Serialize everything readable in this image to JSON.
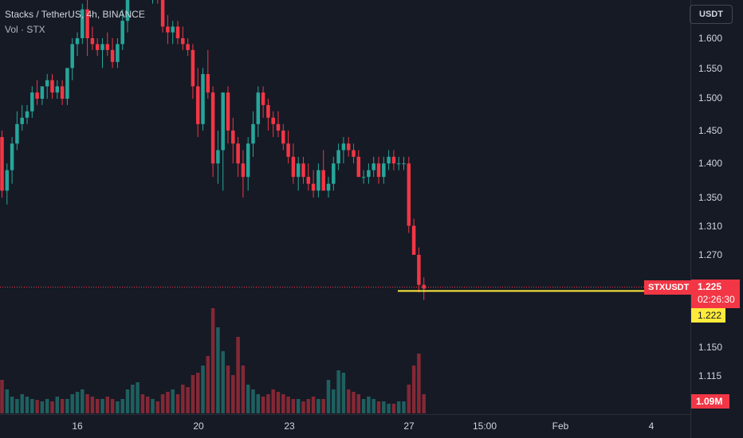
{
  "legend": {
    "title": "Stacks / TetherUS, 4h, BINANCE",
    "volume_label": "Vol · STX"
  },
  "currency_button": "USDT",
  "price_axis": {
    "labels": [
      "1.600",
      "1.550",
      "1.500",
      "1.450",
      "1.400",
      "1.350",
      "1.310",
      "1.270",
      "1.150",
      "1.115"
    ]
  },
  "time_axis": {
    "labels": [
      "16",
      "20",
      "23",
      "27",
      "15:00",
      "Feb",
      "4"
    ]
  },
  "markers": {
    "symbol": "STXUSDT",
    "last_price": "1.225",
    "countdown": "02:26:30",
    "horizontal_line_price": "1.222",
    "volume_value": "1.09M"
  },
  "colors": {
    "background": "#161a25",
    "up": "#26a69a",
    "down": "#f23645",
    "up_volume": "#26a69a80",
    "down_volume": "#f2364580",
    "horizontal_line": "#ffeb3b"
  },
  "chart_data": {
    "type": "candlestick",
    "title": "Stacks / TetherUS, 4h, BINANCE",
    "interval": "4h",
    "y_axis_scale": "log",
    "grid": false,
    "horizontal_line": 1.222,
    "last_price": 1.225,
    "ohlc": [
      [
        1.44,
        1.45,
        1.35,
        1.36
      ],
      [
        1.36,
        1.4,
        1.34,
        1.39
      ],
      [
        1.39,
        1.44,
        1.37,
        1.43
      ],
      [
        1.43,
        1.48,
        1.42,
        1.46
      ],
      [
        1.46,
        1.49,
        1.45,
        1.47
      ],
      [
        1.47,
        1.49,
        1.46,
        1.48
      ],
      [
        1.48,
        1.52,
        1.47,
        1.51
      ],
      [
        1.51,
        1.53,
        1.49,
        1.5
      ],
      [
        1.5,
        1.52,
        1.49,
        1.52
      ],
      [
        1.52,
        1.54,
        1.5,
        1.53
      ],
      [
        1.53,
        1.54,
        1.5,
        1.51
      ],
      [
        1.51,
        1.53,
        1.5,
        1.52
      ],
      [
        1.52,
        1.53,
        1.49,
        1.5
      ],
      [
        1.5,
        1.55,
        1.49,
        1.55
      ],
      [
        1.55,
        1.6,
        1.53,
        1.59
      ],
      [
        1.59,
        1.61,
        1.57,
        1.6
      ],
      [
        1.6,
        1.66,
        1.59,
        1.65
      ],
      [
        1.65,
        1.67,
        1.57,
        1.6
      ],
      [
        1.6,
        1.62,
        1.58,
        1.59
      ],
      [
        1.59,
        1.6,
        1.57,
        1.58
      ],
      [
        1.58,
        1.6,
        1.55,
        1.59
      ],
      [
        1.59,
        1.61,
        1.57,
        1.58
      ],
      [
        1.58,
        1.6,
        1.55,
        1.56
      ],
      [
        1.56,
        1.6,
        1.55,
        1.59
      ],
      [
        1.59,
        1.65,
        1.58,
        1.63
      ],
      [
        1.63,
        1.71,
        1.61,
        1.7
      ],
      [
        1.7,
        1.73,
        1.67,
        1.71
      ],
      [
        1.71,
        1.73,
        1.69,
        1.72
      ],
      [
        1.72,
        1.73,
        1.68,
        1.7
      ],
      [
        1.7,
        1.72,
        1.67,
        1.68
      ],
      [
        1.68,
        1.71,
        1.66,
        1.69
      ],
      [
        1.69,
        1.71,
        1.66,
        1.67
      ],
      [
        1.67,
        1.68,
        1.61,
        1.62
      ],
      [
        1.62,
        1.64,
        1.59,
        1.61
      ],
      [
        1.61,
        1.63,
        1.59,
        1.62
      ],
      [
        1.62,
        1.63,
        1.59,
        1.6
      ],
      [
        1.6,
        1.62,
        1.58,
        1.59
      ],
      [
        1.59,
        1.6,
        1.57,
        1.58
      ],
      [
        1.58,
        1.59,
        1.5,
        1.52
      ],
      [
        1.52,
        1.55,
        1.44,
        1.46
      ],
      [
        1.46,
        1.55,
        1.45,
        1.54
      ],
      [
        1.54,
        1.58,
        1.5,
        1.51
      ],
      [
        1.51,
        1.52,
        1.38,
        1.4
      ],
      [
        1.4,
        1.45,
        1.37,
        1.42
      ],
      [
        1.42,
        1.51,
        1.36,
        1.51
      ],
      [
        1.51,
        1.52,
        1.43,
        1.45
      ],
      [
        1.45,
        1.47,
        1.4,
        1.43
      ],
      [
        1.43,
        1.44,
        1.38,
        1.4
      ],
      [
        1.4,
        1.42,
        1.35,
        1.38
      ],
      [
        1.38,
        1.44,
        1.36,
        1.43
      ],
      [
        1.43,
        1.48,
        1.41,
        1.46
      ],
      [
        1.46,
        1.52,
        1.44,
        1.51
      ],
      [
        1.51,
        1.52,
        1.47,
        1.49
      ],
      [
        1.49,
        1.5,
        1.45,
        1.47
      ],
      [
        1.47,
        1.48,
        1.44,
        1.46
      ],
      [
        1.46,
        1.48,
        1.44,
        1.45
      ],
      [
        1.45,
        1.46,
        1.42,
        1.43
      ],
      [
        1.43,
        1.45,
        1.4,
        1.41
      ],
      [
        1.41,
        1.43,
        1.37,
        1.38
      ],
      [
        1.38,
        1.41,
        1.36,
        1.4
      ],
      [
        1.4,
        1.41,
        1.37,
        1.38
      ],
      [
        1.38,
        1.4,
        1.36,
        1.37
      ],
      [
        1.37,
        1.39,
        1.35,
        1.36
      ],
      [
        1.36,
        1.4,
        1.35,
        1.39
      ],
      [
        1.39,
        1.42,
        1.36,
        1.36
      ],
      [
        1.36,
        1.38,
        1.35,
        1.37
      ],
      [
        1.37,
        1.41,
        1.36,
        1.4
      ],
      [
        1.4,
        1.43,
        1.39,
        1.42
      ],
      [
        1.42,
        1.44,
        1.4,
        1.43
      ],
      [
        1.43,
        1.44,
        1.41,
        1.42
      ],
      [
        1.42,
        1.43,
        1.4,
        1.41
      ],
      [
        1.41,
        1.42,
        1.38,
        1.38
      ],
      [
        1.38,
        1.39,
        1.37,
        1.38
      ],
      [
        1.38,
        1.4,
        1.37,
        1.39
      ],
      [
        1.39,
        1.41,
        1.38,
        1.4
      ],
      [
        1.4,
        1.41,
        1.37,
        1.38
      ],
      [
        1.38,
        1.41,
        1.37,
        1.4
      ],
      [
        1.4,
        1.42,
        1.39,
        1.41
      ],
      [
        1.41,
        1.42,
        1.39,
        1.4
      ],
      [
        1.4,
        1.41,
        1.39,
        1.4
      ],
      [
        1.4,
        1.41,
        1.39,
        1.4
      ],
      [
        1.4,
        1.41,
        1.3,
        1.31
      ],
      [
        1.31,
        1.32,
        1.27,
        1.27
      ],
      [
        1.27,
        1.28,
        1.22,
        1.23
      ],
      [
        1.23,
        1.24,
        1.21,
        1.225
      ]
    ],
    "volume": [
      0.7,
      0.5,
      0.35,
      0.3,
      0.4,
      0.35,
      0.3,
      0.28,
      0.25,
      0.3,
      0.25,
      0.35,
      0.3,
      0.3,
      0.4,
      0.45,
      0.5,
      0.4,
      0.35,
      0.3,
      0.3,
      0.35,
      0.3,
      0.25,
      0.3,
      0.5,
      0.6,
      0.65,
      0.4,
      0.35,
      0.3,
      0.25,
      0.4,
      0.45,
      0.5,
      0.4,
      0.6,
      0.55,
      0.8,
      0.85,
      1.0,
      1.2,
      2.2,
      1.8,
      1.3,
      1.0,
      0.8,
      1.6,
      1.0,
      0.6,
      0.5,
      0.4,
      0.35,
      0.4,
      0.5,
      0.45,
      0.4,
      0.35,
      0.3,
      0.3,
      0.25,
      0.3,
      0.35,
      0.3,
      0.3,
      0.7,
      0.5,
      0.9,
      0.85,
      0.5,
      0.45,
      0.4,
      0.3,
      0.35,
      0.3,
      0.25,
      0.25,
      0.2,
      0.2,
      0.25,
      0.25,
      0.6,
      1.0,
      1.25,
      0.4
    ]
  }
}
